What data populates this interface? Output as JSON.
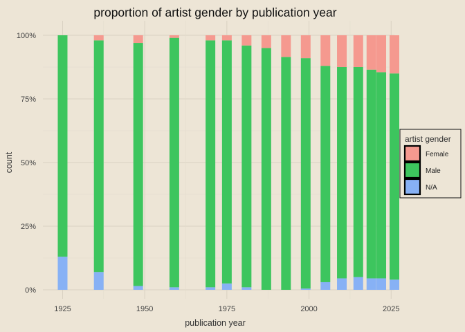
{
  "chart_data": {
    "type": "bar",
    "stacked": true,
    "title": "proportion of artist gender by publication year",
    "xlabel": "publication year",
    "ylabel": "count",
    "xlim": [
      1919,
      2026
    ],
    "ylim": [
      0,
      1
    ],
    "x_ticks": [
      1925,
      1950,
      1975,
      2000,
      2025
    ],
    "y_ticks": [
      {
        "value": 0,
        "label": "0%"
      },
      {
        "value": 0.25,
        "label": "25%"
      },
      {
        "value": 0.5,
        "label": "50%"
      },
      {
        "value": 0.75,
        "label": "75%"
      },
      {
        "value": 1,
        "label": "100%"
      }
    ],
    "grid": true,
    "legend_position": "right",
    "legend_title": "artist gender",
    "x": [
      1925,
      1936,
      1948,
      1959,
      1970,
      1975,
      1981,
      1987,
      1993,
      1999,
      2005,
      2010,
      2015,
      2019,
      2022,
      2026
    ],
    "series": [
      {
        "name": "N/A",
        "color": "#87b1f5",
        "values": [
          0.13,
          0.07,
          0.015,
          0.01,
          0.01,
          0.025,
          0.01,
          0.0,
          0.0,
          0.005,
          0.03,
          0.045,
          0.05,
          0.045,
          0.045,
          0.04
        ]
      },
      {
        "name": "Male",
        "color": "#3dc55e",
        "values": [
          0.87,
          0.91,
          0.955,
          0.98,
          0.97,
          0.955,
          0.95,
          0.95,
          0.915,
          0.905,
          0.85,
          0.83,
          0.825,
          0.82,
          0.81,
          0.81
        ]
      },
      {
        "name": "Female",
        "color": "#f5998f",
        "values": [
          0.0,
          0.02,
          0.03,
          0.01,
          0.02,
          0.02,
          0.04,
          0.05,
          0.085,
          0.09,
          0.12,
          0.125,
          0.125,
          0.135,
          0.145,
          0.15
        ]
      }
    ],
    "legend_order": [
      "Female",
      "Male",
      "N/A"
    ]
  }
}
